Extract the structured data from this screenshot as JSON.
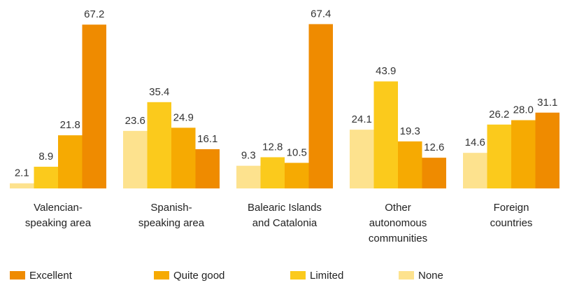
{
  "chart_data": {
    "type": "bar",
    "categories": [
      [
        "Valencian-",
        "speaking area"
      ],
      [
        "Spanish-",
        "speaking area"
      ],
      [
        "Balearic Islands",
        "and Catalonia"
      ],
      [
        "Other",
        "autonomous",
        "communities"
      ],
      [
        "Foreign",
        "countries"
      ]
    ],
    "series": [
      {
        "name": "None",
        "color": "#fde28e",
        "values": [
          2.1,
          23.6,
          9.3,
          24.1,
          14.6
        ],
        "value_labels": [
          "2.1",
          "23.6",
          "9.3",
          "24.1",
          "14.6"
        ]
      },
      {
        "name": "Limited",
        "color": "#fbca1c",
        "values": [
          8.9,
          35.4,
          12.8,
          43.9,
          26.2
        ],
        "value_labels": [
          "8.9",
          "35.4",
          "12.8",
          "43.9",
          "26.2"
        ]
      },
      {
        "name": "Quite good",
        "color": "#f6aa02",
        "values": [
          21.8,
          24.9,
          10.5,
          19.3,
          28.0
        ],
        "value_labels": [
          "21.8",
          "24.9",
          "10.5",
          "19.3",
          "28.0"
        ]
      },
      {
        "name": "Excellent",
        "color": "#ef8b00",
        "values": [
          67.2,
          16.1,
          67.4,
          12.6,
          31.1
        ],
        "value_labels": [
          "67.2",
          "16.1",
          "67.4",
          "12.6",
          "31.1"
        ]
      }
    ],
    "legend": "bottom"
  }
}
